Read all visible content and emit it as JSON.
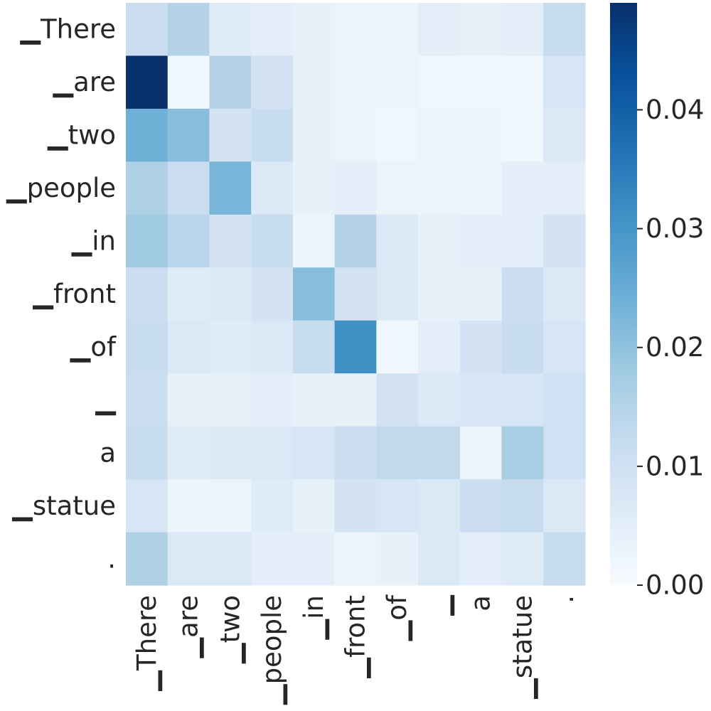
{
  "chart_data": {
    "type": "heatmap",
    "title": "",
    "xlabel": "",
    "ylabel": "",
    "x_labels": [
      "▁There",
      "▁are",
      "▁two",
      "▁people",
      "▁in",
      "▁front",
      "▁of",
      "▁",
      "a",
      "▁statue",
      "."
    ],
    "y_labels": [
      "▁There",
      "▁are",
      "▁two",
      "▁people",
      "▁in",
      "▁front",
      "▁of",
      "▁",
      "a",
      "▁statue",
      "."
    ],
    "values": [
      [
        0.011,
        0.015,
        0.006,
        0.005,
        0.004,
        0.003,
        0.003,
        0.005,
        0.004,
        0.005,
        0.012
      ],
      [
        0.049,
        0.002,
        0.015,
        0.009,
        0.004,
        0.003,
        0.003,
        0.002,
        0.002,
        0.002,
        0.008
      ],
      [
        0.024,
        0.021,
        0.009,
        0.012,
        0.004,
        0.003,
        0.002,
        0.003,
        0.003,
        0.002,
        0.007
      ],
      [
        0.016,
        0.011,
        0.023,
        0.007,
        0.004,
        0.005,
        0.003,
        0.003,
        0.003,
        0.005,
        0.005
      ],
      [
        0.018,
        0.014,
        0.009,
        0.012,
        0.003,
        0.015,
        0.007,
        0.004,
        0.005,
        0.005,
        0.009
      ],
      [
        0.011,
        0.006,
        0.007,
        0.009,
        0.021,
        0.009,
        0.007,
        0.004,
        0.004,
        0.011,
        0.007
      ],
      [
        0.012,
        0.007,
        0.006,
        0.007,
        0.012,
        0.031,
        0.002,
        0.005,
        0.009,
        0.012,
        0.008
      ],
      [
        0.011,
        0.004,
        0.004,
        0.005,
        0.004,
        0.004,
        0.009,
        0.007,
        0.008,
        0.008,
        0.01
      ],
      [
        0.012,
        0.006,
        0.007,
        0.007,
        0.008,
        0.011,
        0.013,
        0.013,
        0.003,
        0.017,
        0.01
      ],
      [
        0.008,
        0.003,
        0.003,
        0.006,
        0.004,
        0.009,
        0.008,
        0.007,
        0.011,
        0.012,
        0.007
      ],
      [
        0.016,
        0.007,
        0.007,
        0.005,
        0.005,
        0.003,
        0.004,
        0.007,
        0.005,
        0.006,
        0.012
      ]
    ],
    "vmin": 0.0,
    "vmax": 0.049,
    "colormap": "Blues",
    "colorbar": {
      "ticks": [
        0.0,
        0.01,
        0.02,
        0.03,
        0.04
      ],
      "tick_labels": [
        "0.00",
        "0.01",
        "0.02",
        "0.03",
        "0.04"
      ]
    },
    "grid": false,
    "legend": "colorbar-right"
  }
}
